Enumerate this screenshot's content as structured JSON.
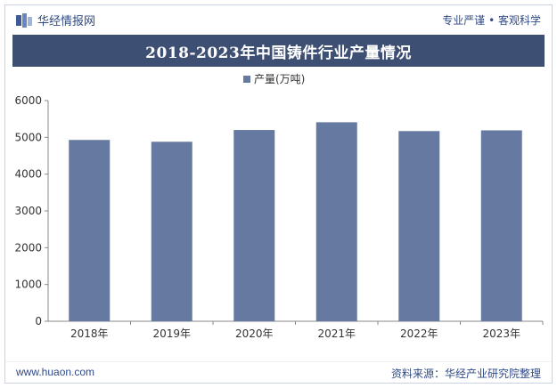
{
  "header": {
    "brand": "华经情报网",
    "tagline": "专业严谨 • 客观科学"
  },
  "footer": {
    "site": "www.huaon.com",
    "source": "资料来源：华经产业研究院整理"
  },
  "colors": {
    "bar": "#667aa1",
    "title_bg": "#3d4f73",
    "accent": "#2f4a86"
  },
  "chart_data": {
    "type": "bar",
    "title": "2018-2023年中国铸件行业产量情况",
    "categories": [
      "2018年",
      "2019年",
      "2020年",
      "2021年",
      "2022年",
      "2023年"
    ],
    "series": [
      {
        "name": "产量(万吨)",
        "values": [
          4930,
          4880,
          5200,
          5410,
          5170,
          5190
        ]
      }
    ],
    "ylim": [
      0,
      6000
    ],
    "yticks": [
      0,
      1000,
      2000,
      3000,
      4000,
      5000,
      6000
    ],
    "xlabel": "",
    "ylabel": "",
    "legend": "top-center",
    "grid": false
  }
}
